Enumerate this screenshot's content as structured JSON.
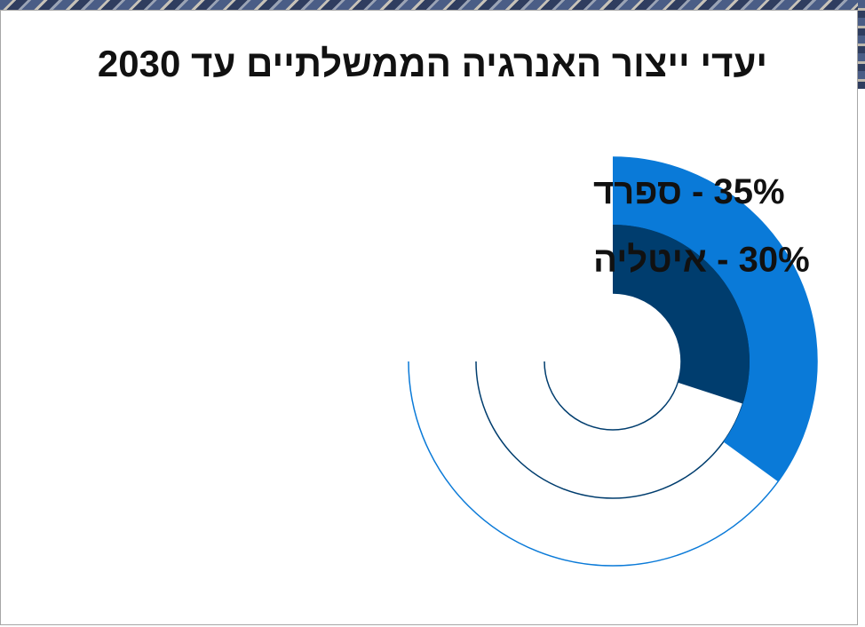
{
  "slide": {
    "title": "יעדי ייצור האנרגיה הממשלתיים עד 2030"
  },
  "chart_data": {
    "type": "radial-bar",
    "title": "יעדי ייצור האנרגיה הממשלתיים עד 2030",
    "max_percent": 100,
    "series": [
      {
        "label": "35% - ספרד",
        "value": 35,
        "color": "#0a7ad8"
      },
      {
        "label": "30% - איטליה",
        "value": 30,
        "color": "#003d6e"
      }
    ],
    "track_colors": [
      "#0a7ad8",
      "#003d6e",
      "#003d6e"
    ]
  }
}
